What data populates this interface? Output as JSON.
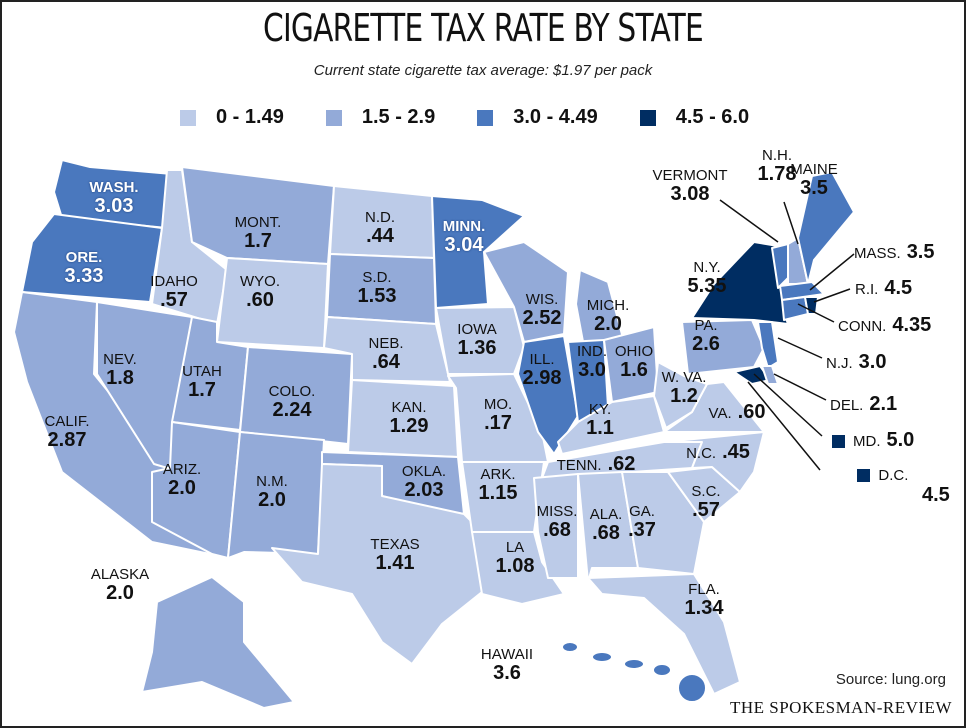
{
  "header": {
    "title": "CIGARETTE TAX RATE BY STATE",
    "subtitle": "Current state cigarette tax average: $1.97 per pack"
  },
  "legend": [
    {
      "label": "0 - 1.49",
      "color": "#bccbe8",
      "min": 0,
      "max": 1.49
    },
    {
      "label": "1.5 - 2.9",
      "color": "#93aad8",
      "min": 1.5,
      "max": 2.9
    },
    {
      "label": "3.0 - 4.49",
      "color": "#4a78be",
      "min": 3.0,
      "max": 4.49
    },
    {
      "label": "4.5 - 6.0",
      "color": "#002d62",
      "min": 4.5,
      "max": 6.0
    }
  ],
  "states": {
    "WA": {
      "name": "WASH.",
      "rate": "3.03"
    },
    "OR": {
      "name": "ORE.",
      "rate": "3.33"
    },
    "CA": {
      "name": "CALIF.",
      "rate": "2.87"
    },
    "NV": {
      "name": "NEV.",
      "rate": "1.8"
    },
    "ID": {
      "name": "IDAHO",
      "rate": ".57"
    },
    "MT": {
      "name": "MONT.",
      "rate": "1.7"
    },
    "WY": {
      "name": "WYO.",
      "rate": ".60"
    },
    "UT": {
      "name": "UTAH",
      "rate": "1.7"
    },
    "CO": {
      "name": "COLO.",
      "rate": "2.24"
    },
    "AZ": {
      "name": "ARIZ.",
      "rate": "2.0"
    },
    "NM": {
      "name": "N.M.",
      "rate": "2.0"
    },
    "ND": {
      "name": "N.D.",
      "rate": ".44"
    },
    "SD": {
      "name": "S.D.",
      "rate": "1.53"
    },
    "NE": {
      "name": "NEB.",
      "rate": ".64"
    },
    "KS": {
      "name": "KAN.",
      "rate": "1.29"
    },
    "OK": {
      "name": "OKLA.",
      "rate": "2.03"
    },
    "TX": {
      "name": "TEXAS",
      "rate": "1.41"
    },
    "MN": {
      "name": "MINN.",
      "rate": "3.04"
    },
    "IA": {
      "name": "IOWA",
      "rate": "1.36"
    },
    "MO": {
      "name": "MO.",
      "rate": ".17"
    },
    "AR": {
      "name": "ARK.",
      "rate": "1.15"
    },
    "LA": {
      "name": "LA",
      "rate": "1.08"
    },
    "WI": {
      "name": "WIS.",
      "rate": "2.52"
    },
    "IL": {
      "name": "ILL.",
      "rate": "2.98"
    },
    "MI": {
      "name": "MICH.",
      "rate": "2.0"
    },
    "IN": {
      "name": "IND.",
      "rate": "3.0"
    },
    "OH": {
      "name": "OHIO",
      "rate": "1.6"
    },
    "KY": {
      "name": "KY.",
      "rate": "1.1"
    },
    "TN": {
      "name": "TENN.",
      "rate": ".62"
    },
    "MS": {
      "name": "MISS.",
      "rate": ".68"
    },
    "AL": {
      "name": "ALA.",
      "rate": ".68"
    },
    "GA": {
      "name": "GA.",
      "rate": ".37"
    },
    "FL": {
      "name": "FLA.",
      "rate": "1.34"
    },
    "SC": {
      "name": "S.C.",
      "rate": ".57"
    },
    "NC": {
      "name": "N.C.",
      "rate": ".45"
    },
    "VA": {
      "name": "VA.",
      "rate": ".60"
    },
    "WV": {
      "name": "W. VA.",
      "rate": "1.2"
    },
    "PA": {
      "name": "PA.",
      "rate": "2.6"
    },
    "NY": {
      "name": "N.Y.",
      "rate": "5.35"
    },
    "NJ": {
      "name": "N.J.",
      "rate": "3.0"
    },
    "MD": {
      "name": "MD.",
      "rate": "5.0"
    },
    "DE": {
      "name": "DEL.",
      "rate": "2.1"
    },
    "DC": {
      "name": "D.C.",
      "rate": "4.5"
    },
    "VT": {
      "name": "VERMONT",
      "rate": "3.08"
    },
    "NH": {
      "name": "N.H.",
      "rate": "1.78"
    },
    "ME": {
      "name": "MAINE",
      "rate": "3.5"
    },
    "MA": {
      "name": "MASS.",
      "rate": "3.5"
    },
    "CT": {
      "name": "CONN.",
      "rate": "4.35"
    },
    "RI": {
      "name": "R.I.",
      "rate": "4.5"
    },
    "AK": {
      "name": "ALASKA",
      "rate": "2.0"
    },
    "HI": {
      "name": "HAWAII",
      "rate": "3.6"
    }
  },
  "footer": {
    "source": "Source: lung.org",
    "brand": "THE SPOKESMAN-REVIEW"
  }
}
